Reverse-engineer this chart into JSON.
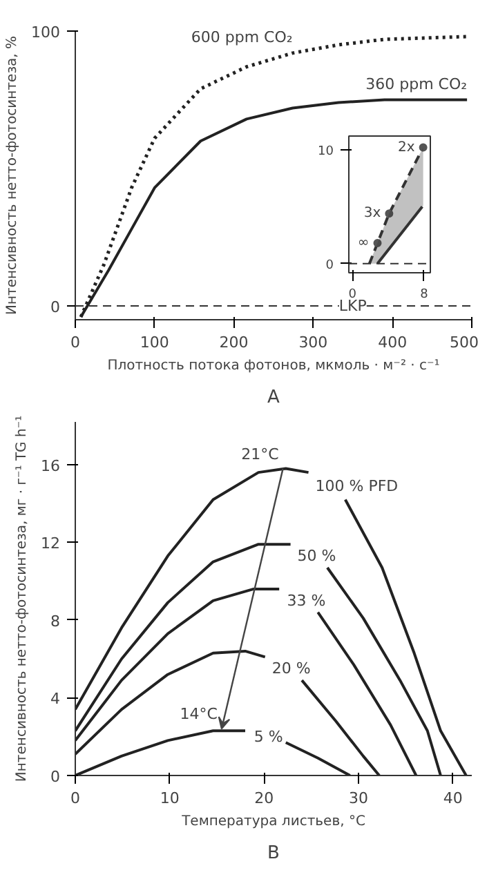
{
  "chart_data": [
    {
      "type": "line",
      "xlabel": "Плотность потока фотонов, мкмоль · м⁻² · с⁻¹",
      "ylabel": "Интенсивность нетто-фотосинтеза, %",
      "xlim": [
        0,
        500
      ],
      "ylim": [
        -5,
        100
      ],
      "xticks": [
        0,
        100,
        200,
        300,
        400,
        500
      ],
      "yticks": [
        0,
        100
      ],
      "grid": false,
      "series": [
        {
          "name": "600 ppm CO₂",
          "color": "#222222",
          "line_style": "dotted",
          "x": [
            7,
            36,
            71,
            100,
            158,
            216,
            274,
            332,
            390,
            494
          ],
          "values": [
            -4,
            15,
            43,
            61,
            79,
            87,
            92,
            95,
            97,
            98
          ]
        },
        {
          "name": "360 ppm CO₂",
          "color": "#222222",
          "line_style": "solid",
          "x": [
            7,
            42,
            71,
            100,
            158,
            216,
            274,
            332,
            390,
            494
          ],
          "values": [
            -4,
            13,
            28,
            43,
            60,
            68,
            72,
            74,
            75,
            75
          ]
        }
      ],
      "ref_lines": [
        {
          "axis": "y",
          "value": 0,
          "line_style": "dashed",
          "label": "LKP"
        }
      ],
      "annotations": [
        "A"
      ]
    },
    {
      "type": "line",
      "xlim": [
        -0.4,
        8.7
      ],
      "ylim": [
        -0.8,
        11.2
      ],
      "xticks": [
        0,
        8
      ],
      "yticks": [
        0,
        10
      ],
      "grid": false,
      "series": [
        {
          "color": "#333333",
          "line_style": "dashed",
          "x": [
            1.9,
            2.8,
            4.1,
            7.9
          ],
          "values": [
            0,
            1.8,
            4.4,
            10.2
          ],
          "lower": [
            0,
            0,
            1.3,
            5.1
          ],
          "upper": [
            0,
            1.8,
            4.4,
            10.2
          ]
        },
        {
          "color": "#333333",
          "line_style": "solid",
          "x": [
            2.8,
            7.8
          ],
          "values": [
            0,
            5
          ]
        },
        {
          "type": "scatter",
          "color": "#555555",
          "marker": "circle",
          "x": [
            2.8,
            4.1,
            7.9
          ],
          "values": [
            1.8,
            4.4,
            10.2
          ]
        }
      ],
      "ref_lines": [
        {
          "axis": "y",
          "value": 0,
          "line_style": "dashed"
        }
      ],
      "annotations": [
        {
          "text": "2x",
          "x": 7.9,
          "y": 10.2
        },
        {
          "text": "3x",
          "x": 4.1,
          "y": 4.4
        },
        {
          "text": "∞",
          "x": 2.8,
          "y": 1.8
        }
      ]
    },
    {
      "type": "line",
      "xlabel": "Температура листьев, °С",
      "ylabel": "Интенсивность нетто-фотосинтеза, мг · г⁻¹ TG h⁻¹",
      "xlim": [
        0,
        42
      ],
      "ylim": [
        0,
        18.2
      ],
      "xticks": [
        0,
        10,
        20,
        30,
        40
      ],
      "yticks": [
        0,
        4,
        8,
        12,
        16
      ],
      "grid": false,
      "series": [
        {
          "name": "100 % PFD",
          "color": "#222222",
          "x": [
            0,
            4.9,
            9.8,
            14.6,
            19.4,
            22.3,
            24.7,
            26.6,
            28.6,
            32.5,
            35.9,
            38.7,
            41.4
          ],
          "values": [
            3.4,
            7.6,
            11.3,
            14.2,
            15.6,
            15.8,
            15.6,
            null,
            14.2,
            10.7,
            6.3,
            2.3,
            0
          ]
        },
        {
          "name": "50 %",
          "color": "#222222",
          "x": [
            0,
            4.9,
            9.8,
            14.6,
            19.4,
            22.8,
            24.7,
            26.7,
            30.5,
            34.4,
            37.3,
            38.7
          ],
          "values": [
            2.3,
            6,
            8.9,
            11,
            11.9,
            11.9,
            null,
            10.7,
            8.1,
            4.9,
            2.3,
            0
          ]
        },
        {
          "name": "33 %",
          "color": "#222222",
          "x": [
            0,
            4.9,
            9.8,
            14.6,
            18.9,
            21.6,
            23.6,
            25.7,
            29.5,
            33.4,
            36.1
          ],
          "values": [
            1.8,
            4.9,
            7.3,
            9,
            9.6,
            9.6,
            null,
            8.4,
            5.7,
            2.6,
            0
          ]
        },
        {
          "name": "20 %",
          "color": "#222222",
          "x": [
            0,
            4.9,
            9.8,
            14.6,
            18,
            20.1,
            22,
            24,
            27.6,
            30.5,
            32.2
          ],
          "values": [
            1.1,
            3.4,
            5.2,
            6.3,
            6.4,
            6.1,
            null,
            4.9,
            2.8,
            1,
            0
          ]
        },
        {
          "name": "5 %",
          "color": "#222222",
          "x": [
            0,
            4.9,
            9.8,
            14.6,
            18,
            20.1,
            22.3,
            25.7,
            29.1
          ],
          "values": [
            0,
            1,
            1.8,
            2.3,
            2.3,
            null,
            1.7,
            0.9,
            0
          ]
        }
      ],
      "annotations": [
        {
          "text": "21°C",
          "x": 22,
          "y": 15.8
        },
        {
          "text": "14°C",
          "x": 15.5,
          "y": 2.4
        },
        "B"
      ]
    }
  ]
}
